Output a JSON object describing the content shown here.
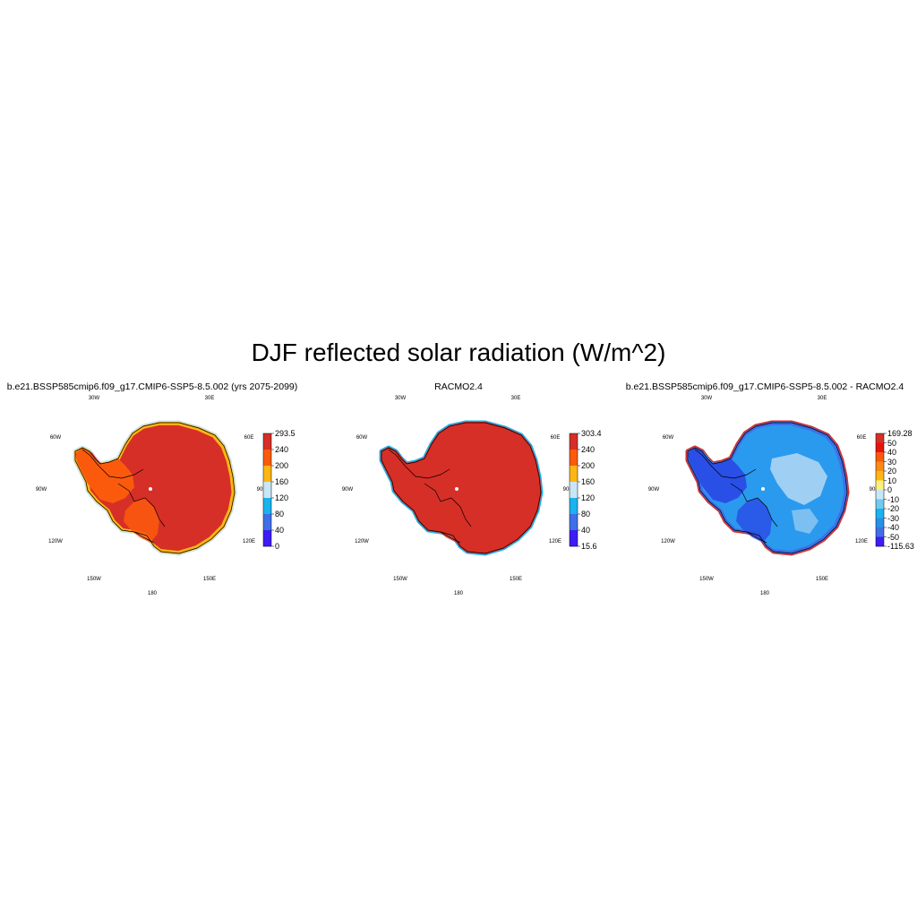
{
  "figure": {
    "title": "DJF reflected solar radiation (W/m^2)"
  },
  "panels": [
    {
      "id": "model",
      "title": "b.e21.BSSP585cmip6.f09_g17.CMIP6-SSP5-8.5.002 (yrs 2075-2099)",
      "colorbar": {
        "labels": [
          "293.5",
          "240",
          "200",
          "160",
          "120",
          "80",
          "40",
          "0"
        ],
        "colors": [
          "#d62f27",
          "#fb5a0d",
          "#fdb614",
          "#c9e6f6",
          "#1ab3ef",
          "#3f6fe8",
          "#3e1cf5"
        ]
      },
      "interior_color": "#d62f27",
      "peninsula_color": "#fb5a0d",
      "coast_color": "#fdb614",
      "fringe_color": "#c9e6f6"
    },
    {
      "id": "racmo",
      "title": "RACMO2.4",
      "colorbar": {
        "labels": [
          "303.4",
          "240",
          "200",
          "160",
          "120",
          "80",
          "40",
          "15.6"
        ],
        "colors": [
          "#d62f27",
          "#fb5a0d",
          "#fdb614",
          "#c9e6f6",
          "#1ab3ef",
          "#3f6fe8",
          "#3e1cf5"
        ]
      },
      "interior_color": "#d62f27",
      "peninsula_color": "#d62f27",
      "coast_color": "#d62f27",
      "fringe_color": "#1ab3ef"
    },
    {
      "id": "diff",
      "title": "b.e21.BSSP585cmip6.f09_g17.CMIP6-SSP5-8.5.002 - RACMO2.4",
      "colorbar": {
        "labels": [
          "169.28",
          "50",
          "40",
          "30",
          "20",
          "10",
          "0",
          "-10",
          "-20",
          "-30",
          "-40",
          "-50",
          "-115.63"
        ],
        "colors": [
          "#d62f27",
          "#e8130f",
          "#fb5a0d",
          "#fd8a12",
          "#fdb614",
          "#fdf17a",
          "#c9e6f6",
          "#6fcaf2",
          "#1ab3ef",
          "#2890e8",
          "#3f6fe8",
          "#3e1cf5"
        ]
      },
      "interior_color": "#2a9aee",
      "peninsula_color": "#2a4fe6",
      "coast_color": "#3f6fe8",
      "fringe_color": "#d62f27",
      "light_color": "#9fd0f4"
    }
  ],
  "longitude_labels": [
    "30W",
    "30E",
    "60W",
    "60E",
    "90W",
    "90E",
    "120W",
    "120E",
    "150W",
    "150E",
    "180"
  ]
}
